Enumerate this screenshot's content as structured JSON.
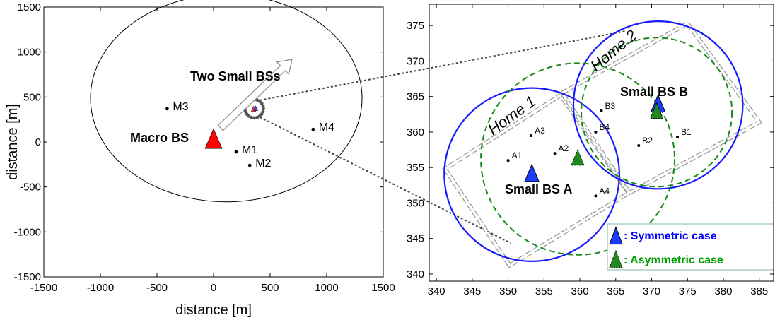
{
  "chart_data": [
    {
      "type": "scatter",
      "xlabel": "distance [m]",
      "ylabel": "distance [m]",
      "xlim": [
        -1500,
        1500
      ],
      "ylim": [
        -1500,
        1500
      ],
      "x_ticks": [
        "-1500",
        "-1000",
        "-500",
        "0",
        "500",
        "1000",
        "1500"
      ],
      "y_ticks": [
        "-1500",
        "-1000",
        "-500",
        "0",
        "500",
        "1000",
        "1500"
      ],
      "macro_bs": {
        "label": "Macro BS",
        "x": 0,
        "y": 0,
        "color": "#ff0000"
      },
      "cell_radius": 1200,
      "macro_users": [
        {
          "label": "M1",
          "x": 200,
          "y": -110
        },
        {
          "label": "M2",
          "x": 320,
          "y": -260
        },
        {
          "label": "M3",
          "x": -410,
          "y": 370
        },
        {
          "label": "M4",
          "x": 880,
          "y": 140
        }
      ],
      "small_bs_cluster": {
        "x": 360,
        "y": 370,
        "radius": 100
      },
      "annotation": "Two Small BSs"
    },
    {
      "type": "scatter",
      "xlim": [
        339,
        387
      ],
      "ylim": [
        339,
        378
      ],
      "x_ticks": [
        "340",
        "345",
        "350",
        "355",
        "360",
        "365",
        "370",
        "375",
        "380",
        "385"
      ],
      "y_ticks": [
        "340",
        "345",
        "350",
        "355",
        "360",
        "365",
        "370",
        "375"
      ],
      "small_bs": [
        {
          "label": "Small BS A",
          "symmetric": {
            "x": 353.3,
            "y": 354
          },
          "asymmetric": {
            "x": 359.7,
            "y": 356.2
          }
        },
        {
          "label": "Small BS B",
          "symmetric": {
            "x": 370.9,
            "y": 363.8
          },
          "asymmetric": {
            "x": 370.7,
            "y": 362.8
          }
        }
      ],
      "users_a": [
        {
          "label": "A1",
          "x": 350,
          "y": 356
        },
        {
          "label": "A2",
          "x": 356.5,
          "y": 357
        },
        {
          "label": "A3",
          "x": 353.2,
          "y": 359.5
        },
        {
          "label": "A4",
          "x": 362.2,
          "y": 351
        }
      ],
      "users_b": [
        {
          "label": "B1",
          "x": 373.6,
          "y": 359.3
        },
        {
          "label": "B2",
          "x": 368.2,
          "y": 358.1
        },
        {
          "label": "B3",
          "x": 363,
          "y": 363
        },
        {
          "label": "B4",
          "x": 362.2,
          "y": 360
        }
      ],
      "homes": [
        {
          "label": "Home 1",
          "corners": [
            [
              341.2,
              354.8
            ],
            [
              350.2,
              341.2
            ],
            [
              366.8,
              351.4
            ],
            [
              357.3,
              365.2
            ]
          ]
        },
        {
          "label": "Home 2",
          "corners": [
            [
              357.5,
              365.5
            ],
            [
              375,
              375.3
            ],
            [
              385,
              361.4
            ],
            [
              366.9,
              351.4
            ]
          ]
        }
      ],
      "coverage_symmetric": [
        {
          "cx": 353.3,
          "cy": 354,
          "r": 12.2
        },
        {
          "cx": 370.9,
          "cy": 363.8,
          "r": 11.8
        }
      ],
      "coverage_asymmetric": [
        {
          "cx": 359.7,
          "cy": 356.2,
          "r": 13.5
        },
        {
          "cx": 370.7,
          "cy": 362.8,
          "r": 10.5
        }
      ],
      "legend": [
        {
          "label": ": Symmetric case",
          "color": "#0000ff"
        },
        {
          "label": ": Asymmetric case",
          "color": "#00a000"
        }
      ],
      "colors": {
        "symmetric": "#1a1aff",
        "asymmetric": "#188a18",
        "home": "#9a9a9a"
      }
    }
  ]
}
